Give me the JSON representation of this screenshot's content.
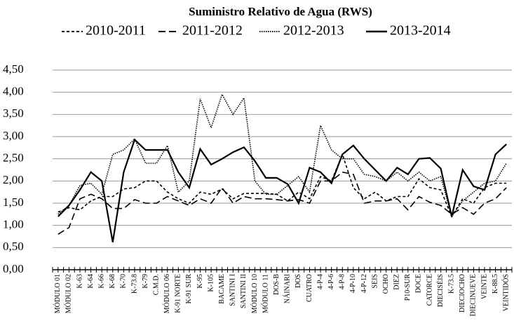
{
  "chart_data": {
    "type": "line",
    "title": "Suministro Relativo de Agua (RWS)",
    "categories": [
      "MÓDULO 01",
      "MÓDULO 02",
      "K-63",
      "K-64",
      "K-66",
      "K-68",
      "K-70",
      "K-73.8",
      "K-79",
      "C.M.D.",
      "MÓDULO 06",
      "K-91 NORTE",
      "K-91 SUR",
      "K-95",
      "K-105",
      "BACAME",
      "SANTINI I",
      "SANTINI II",
      "MÓDULO 10",
      "MÓDULO 11",
      "DOS-B",
      "NÁINARI",
      "DOS",
      "CUATRO",
      "4-P-4",
      "4-P-6",
      "4-P-8",
      "4-P-10",
      "4-P-12",
      "SEIS",
      "OCHO",
      "DIEZ",
      "P10-SUR",
      "DOCE",
      "CATORCE",
      "DIECISÉIS",
      "K-73.5",
      "DIECIOCHO",
      "DIECINUEVE",
      "VEINTE",
      "K-88.5",
      "VEINTIDÓS"
    ],
    "series": [
      {
        "name": "2010-2011",
        "color": "#000000",
        "dash": "short-dash",
        "values": [
          1.3,
          1.4,
          1.35,
          1.55,
          1.65,
          1.65,
          1.82,
          1.85,
          2.0,
          2.0,
          1.75,
          1.6,
          1.5,
          1.75,
          1.7,
          1.82,
          1.6,
          1.72,
          1.72,
          1.72,
          1.7,
          1.55,
          1.75,
          1.6,
          2.1,
          2.0,
          2.6,
          1.85,
          1.6,
          1.75,
          1.55,
          1.65,
          1.65,
          2.05,
          1.85,
          1.8,
          1.2,
          1.6,
          1.5,
          1.85,
          1.95,
          1.95
        ]
      },
      {
        "name": "2011-2012",
        "color": "#000000",
        "dash": "long-dash",
        "values": [
          0.8,
          0.95,
          1.6,
          1.7,
          1.6,
          1.38,
          1.38,
          1.58,
          1.5,
          1.5,
          1.65,
          1.55,
          1.45,
          1.6,
          1.5,
          1.85,
          1.5,
          1.65,
          1.6,
          1.6,
          1.58,
          1.55,
          1.58,
          1.5,
          2.0,
          2.0,
          2.2,
          2.15,
          1.5,
          1.55,
          1.55,
          1.6,
          1.35,
          1.65,
          1.52,
          1.45,
          1.25,
          1.4,
          1.25,
          1.5,
          1.6,
          1.85
        ]
      },
      {
        "name": "2012-2013",
        "color": "#000000",
        "dash": "dotted",
        "values": [
          1.25,
          1.45,
          1.9,
          1.95,
          1.7,
          2.6,
          2.7,
          2.95,
          2.4,
          2.4,
          2.8,
          1.75,
          2.0,
          3.85,
          3.2,
          3.95,
          3.5,
          3.87,
          2.0,
          1.7,
          1.7,
          1.9,
          2.1,
          1.75,
          3.25,
          2.7,
          2.5,
          2.5,
          2.15,
          2.1,
          2.0,
          2.2,
          2.0,
          2.2,
          2.0,
          2.1,
          1.2,
          1.55,
          1.75,
          1.95,
          2.0,
          2.4
        ]
      },
      {
        "name": "2013-2014",
        "color": "#000000",
        "dash": "solid",
        "values": [
          1.2,
          1.45,
          1.8,
          2.2,
          2.0,
          0.62,
          2.2,
          2.93,
          2.7,
          2.7,
          2.7,
          2.2,
          1.85,
          2.72,
          2.37,
          2.5,
          2.65,
          2.76,
          2.45,
          2.07,
          2.07,
          1.93,
          1.5,
          2.3,
          2.2,
          1.95,
          2.6,
          2.8,
          2.5,
          2.25,
          2.0,
          2.3,
          2.15,
          2.5,
          2.52,
          2.28,
          1.2,
          2.25,
          1.88,
          1.8,
          2.6,
          2.83
        ]
      }
    ],
    "ylim": [
      0,
      4.5
    ],
    "yticks": [
      {
        "value": 0,
        "label": "0,00"
      },
      {
        "value": 0.5,
        "label": "0,50"
      },
      {
        "value": 1,
        "label": "1,00"
      },
      {
        "value": 1.5,
        "label": "1,50"
      },
      {
        "value": 2,
        "label": "2,00"
      },
      {
        "value": 2.5,
        "label": "2,50"
      },
      {
        "value": 3,
        "label": "3,00"
      },
      {
        "value": 3.5,
        "label": "3,50"
      },
      {
        "value": 4,
        "label": "4,00"
      },
      {
        "value": 4.5,
        "label": "4,50"
      }
    ],
    "grid": true,
    "legend": "top"
  }
}
